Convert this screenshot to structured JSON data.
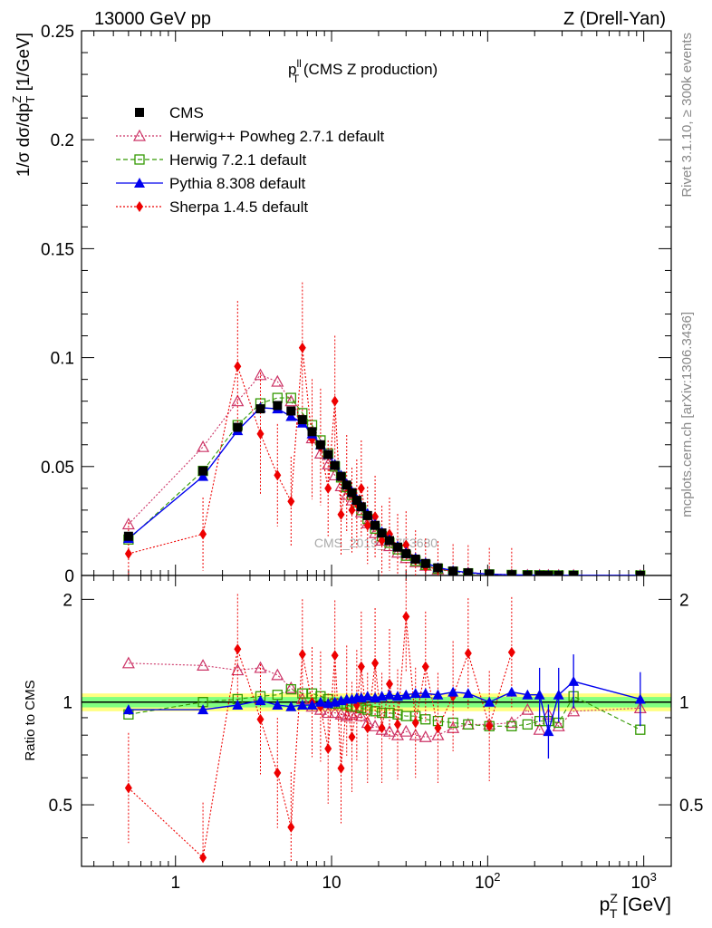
{
  "header": {
    "left": "13000 GeV pp",
    "right": "Z (Drell-Yan)"
  },
  "side_labels": {
    "rivet": "Rivet 3.1.10, ≥ 300k events",
    "mcplots": "mcplots.cern.ch [arXiv:1306.3436]"
  },
  "plot_title": {
    "main": "p",
    "sup": "ll",
    "sub": "T",
    "rest": " (CMS Z production)"
  },
  "watermark": "CMS_2019_I1753680",
  "colors": {
    "cms": "#000000",
    "herwigpp": "#cc3366",
    "herwig7": "#339900",
    "pythia": "#0000ee",
    "sherpa": "#ee0000",
    "band_inner": "#80ff80",
    "band_outer": "#ffff80"
  },
  "chart_data": {
    "type": "scatter",
    "x_scale": "log",
    "xlim": [
      0.25,
      1500
    ],
    "xlabel": "p_T^Z [GeV]",
    "xticks": [
      {
        "v": 1,
        "label": "1"
      },
      {
        "v": 10,
        "label": "10"
      },
      {
        "v": 100,
        "label": "10",
        "exp": "2"
      },
      {
        "v": 1000,
        "label": "10",
        "exp": "3"
      }
    ],
    "main": {
      "ylabel": "1/σ dσ/dp_T^Z [1/GeV]",
      "ylim": [
        0,
        0.25
      ],
      "yticks": [
        {
          "v": 0,
          "label": "0"
        },
        {
          "v": 0.05,
          "label": "0.05"
        },
        {
          "v": 0.1,
          "label": "0.1"
        },
        {
          "v": 0.15,
          "label": "0.15"
        },
        {
          "v": 0.2,
          "label": "0.2"
        },
        {
          "v": 0.25,
          "label": "0.25"
        }
      ]
    },
    "ratio": {
      "ylabel": "Ratio to CMS",
      "ylim": [
        0.33,
        2.35
      ],
      "yticks": [
        {
          "v": 0.5,
          "label": "0.5"
        },
        {
          "v": 1,
          "label": "1"
        },
        {
          "v": 2,
          "label": "2"
        }
      ]
    },
    "x": [
      0.5,
      1.5,
      2.5,
      3.5,
      4.5,
      5.5,
      6.5,
      7.5,
      8.5,
      9.5,
      10.5,
      11.5,
      12.5,
      13.5,
      14.5,
      15.5,
      17,
      19,
      21,
      23.5,
      26.5,
      30,
      34.5,
      40,
      48,
      60,
      75,
      102.5,
      142.5,
      180,
      215,
      245,
      285,
      355,
      950
    ],
    "series": [
      {
        "name": "CMS",
        "key": "cms",
        "marker": "square",
        "values": [
          0.018,
          0.048,
          0.068,
          0.0765,
          0.078,
          0.0755,
          0.0715,
          0.066,
          0.06,
          0.0555,
          0.0505,
          0.0455,
          0.0415,
          0.038,
          0.0345,
          0.0315,
          0.0275,
          0.023,
          0.0195,
          0.016,
          0.013,
          0.01,
          0.0075,
          0.0055,
          0.0035,
          0.002,
          0.0012,
          0.0006,
          0.0003,
          0.00015,
          0.0001,
          8e-05,
          5e-05,
          3e-05,
          5e-06
        ],
        "ratio": [
          1,
          1,
          1,
          1,
          1,
          1,
          1,
          1,
          1,
          1,
          1,
          1,
          1,
          1,
          1,
          1,
          1,
          1,
          1,
          1,
          1,
          1,
          1,
          1,
          1,
          1,
          1,
          1,
          1,
          1,
          1,
          1,
          1,
          1,
          1
        ]
      },
      {
        "name": "Herwig++ Powheg 2.7.1 default",
        "key": "herwigpp",
        "marker": "triangle-open",
        "line": "dotted",
        "values": [
          0.0235,
          0.059,
          0.08,
          0.092,
          0.089,
          0.08,
          0.0715,
          0.063,
          0.056,
          0.051,
          0.046,
          0.041,
          0.037,
          0.0345,
          0.032,
          0.029,
          0.024,
          0.0195,
          0.016,
          0.0135,
          0.0105,
          0.008,
          0.0061,
          0.0045,
          0.0028,
          0.0017,
          0.001,
          0.0005,
          0.00025,
          0.00012,
          9e-05,
          7e-05,
          4e-05,
          3e-05,
          5e-06
        ],
        "ratio": [
          1.3,
          1.28,
          1.24,
          1.26,
          1.2,
          1.1,
          1.02,
          0.97,
          0.95,
          0.93,
          0.93,
          0.92,
          0.91,
          0.92,
          0.93,
          0.91,
          0.87,
          0.85,
          0.83,
          0.82,
          0.8,
          0.82,
          0.8,
          0.79,
          0.8,
          0.84,
          0.86,
          0.86,
          0.87,
          0.95,
          0.83,
          0.92,
          0.85,
          0.94,
          0.96
        ]
      },
      {
        "name": "Herwig 7.2.1 default",
        "key": "herwig7",
        "marker": "square-open",
        "line": "dashed",
        "values": [
          0.0165,
          0.048,
          0.069,
          0.079,
          0.0815,
          0.0815,
          0.0745,
          0.069,
          0.062,
          0.056,
          0.05,
          0.045,
          0.0405,
          0.037,
          0.0335,
          0.03,
          0.026,
          0.0215,
          0.018,
          0.015,
          0.012,
          0.0091,
          0.0067,
          0.0049,
          0.0031,
          0.0017,
          0.001,
          0.0005,
          0.00025,
          0.00013,
          9e-05,
          7e-05,
          4e-05,
          3e-05,
          4e-06
        ],
        "ratio": [
          0.92,
          1.0,
          1.02,
          1.04,
          1.05,
          1.09,
          1.06,
          1.06,
          1.04,
          1.02,
          0.99,
          0.99,
          0.98,
          0.97,
          0.97,
          0.96,
          0.95,
          0.94,
          0.93,
          0.93,
          0.92,
          0.91,
          0.91,
          0.89,
          0.88,
          0.87,
          0.86,
          0.85,
          0.85,
          0.86,
          0.88,
          0.88,
          0.87,
          1.04,
          0.83
        ]
      },
      {
        "name": "Pythia 8.308 default",
        "key": "pythia",
        "marker": "triangle",
        "line": "solid",
        "values": [
          0.017,
          0.0455,
          0.0665,
          0.077,
          0.0765,
          0.073,
          0.07,
          0.065,
          0.06,
          0.0555,
          0.051,
          0.046,
          0.042,
          0.0385,
          0.035,
          0.032,
          0.0285,
          0.0235,
          0.02,
          0.0165,
          0.0135,
          0.0105,
          0.008,
          0.0058,
          0.0036,
          0.0022,
          0.0013,
          0.0006,
          0.0003,
          0.00016,
          0.00011,
          8e-05,
          5e-05,
          4e-05,
          5e-06
        ],
        "ratio": [
          0.95,
          0.95,
          0.98,
          1.01,
          0.98,
          0.97,
          0.98,
          0.98,
          1.0,
          0.99,
          1.0,
          1.01,
          1.02,
          1.02,
          1.03,
          1.03,
          1.04,
          1.03,
          1.04,
          1.05,
          1.04,
          1.05,
          1.06,
          1.06,
          1.05,
          1.07,
          1.06,
          1.0,
          1.07,
          1.05,
          1.05,
          0.82,
          1.05,
          1.15,
          1.02
        ]
      },
      {
        "name": "Sherpa 1.4.5 default",
        "key": "sherpa",
        "marker": "diamond",
        "line": "dotted",
        "values": [
          0.01,
          0.019,
          0.096,
          0.065,
          0.046,
          0.034,
          0.1045,
          0.0625,
          0.059,
          0.04,
          0.08,
          0.028,
          0.042,
          0.03,
          0.033,
          0.04,
          0.023,
          0.027,
          0.016,
          0.019,
          0.013,
          0.014,
          0.007,
          0.004,
          0.003,
          0.0019,
          0.0015,
          0.0005,
          0.00045,
          0.0,
          0.0,
          0.0,
          0.0,
          0.0,
          0.0
        ],
        "ratio": [
          0.56,
          0.35,
          1.43,
          0.89,
          0.62,
          0.43,
          1.38,
          1.0,
          0.97,
          0.73,
          1.37,
          0.64,
          1.01,
          0.79,
          0.98,
          1.27,
          0.84,
          1.3,
          0.84,
          1.13,
          0.86,
          1.78,
          0.87,
          1.27,
          0.84,
          1.04,
          1.39,
          0.85,
          1.4,
          null,
          null,
          null,
          null,
          null,
          null
        ]
      }
    ]
  }
}
